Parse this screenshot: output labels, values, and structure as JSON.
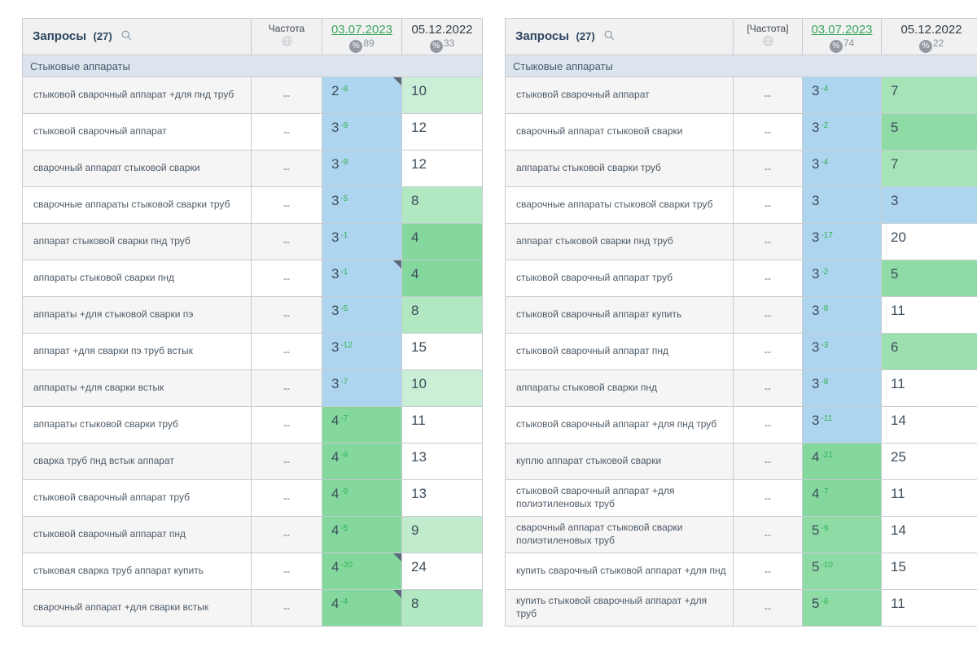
{
  "position_colors": {
    "2": "#aed5ef",
    "3": "#aed5ef",
    "4": "#84d89e",
    "5": "#8edba6",
    "6": "#9ce0b0",
    "7": "#a6e4b8",
    "8": "#b1e7c1",
    "9": "#c1ebcd",
    "10": "#caeed6"
  },
  "colors": {
    "delta_green": "#2fb350",
    "date_link_green": "#3aa55c",
    "group_row_bg": "#dce5ee",
    "header_bg": "#f1f1f1",
    "row_stripe": "#f5f5f5",
    "corner_marker": "#5a6b78",
    "badge_gray": "#939aa2"
  },
  "icons": [
    "search-icon",
    "globe-icon",
    "percent-visibility-icon",
    "note-corner-marker"
  ],
  "tables": [
    {
      "header": {
        "title": "Запросы",
        "count": "(27)",
        "freq": "Частота",
        "date_current": "03.07.2023",
        "date_current_visibility": "89",
        "date_prev": "05.12.2022",
        "date_prev_visibility": "33"
      },
      "group": "Стыковые аппараты",
      "rows": [
        {
          "q": "стыковой сварочный аппарат +для пнд труб",
          "f": "--",
          "p1": "2",
          "d1": "-8",
          "tri": true,
          "p2": "10"
        },
        {
          "q": "стыковой сварочный аппарат",
          "f": "--",
          "p1": "3",
          "d1": "-9",
          "tri": false,
          "p2": "12"
        },
        {
          "q": "сварочный аппарат стыковой сварки",
          "f": "--",
          "p1": "3",
          "d1": "-9",
          "tri": false,
          "p2": "12"
        },
        {
          "q": "сварочные аппараты стыковой сварки труб",
          "f": "--",
          "p1": "3",
          "d1": "-5",
          "tri": false,
          "p2": "8"
        },
        {
          "q": "аппарат стыковой сварки пнд труб",
          "f": "--",
          "p1": "3",
          "d1": "-1",
          "tri": false,
          "p2": "4"
        },
        {
          "q": "аппараты стыковой сварки пнд",
          "f": "--",
          "p1": "3",
          "d1": "-1",
          "tri": true,
          "p2": "4"
        },
        {
          "q": "аппараты +для стыковой сварки пэ",
          "f": "--",
          "p1": "3",
          "d1": "-5",
          "tri": false,
          "p2": "8"
        },
        {
          "q": "аппарат +для сварки пэ труб встык",
          "f": "--",
          "p1": "3",
          "d1": "-12",
          "tri": false,
          "p2": "15"
        },
        {
          "q": "аппараты +для сварки встык",
          "f": "--",
          "p1": "3",
          "d1": "-7",
          "tri": false,
          "p2": "10"
        },
        {
          "q": "аппараты стыковой сварки труб",
          "f": "--",
          "p1": "4",
          "d1": "-7",
          "tri": false,
          "p2": "11"
        },
        {
          "q": "сварка труб пнд встык аппарат",
          "f": "--",
          "p1": "4",
          "d1": "-9",
          "tri": false,
          "p2": "13"
        },
        {
          "q": "стыковой сварочный аппарат труб",
          "f": "--",
          "p1": "4",
          "d1": "-9",
          "tri": false,
          "p2": "13"
        },
        {
          "q": "стыковой сварочный аппарат пнд",
          "f": "--",
          "p1": "4",
          "d1": "-5",
          "tri": false,
          "p2": "9"
        },
        {
          "q": "стыковая сварка труб аппарат купить",
          "f": "--",
          "p1": "4",
          "d1": "-20",
          "tri": true,
          "p2": "24"
        },
        {
          "q": "сварочный аппарат +для сварки встык",
          "f": "--",
          "p1": "4",
          "d1": "-4",
          "tri": true,
          "p2": "8"
        }
      ]
    },
    {
      "header": {
        "title": "Запросы",
        "count": "(27)",
        "freq": "[Частота]",
        "date_current": "03.07.2023",
        "date_current_visibility": "74",
        "date_prev": "05.12.2022",
        "date_prev_visibility": "22"
      },
      "group": "Стыковые аппараты",
      "rows": [
        {
          "q": "стыковой сварочный аппарат",
          "f": "--",
          "p1": "3",
          "d1": "-4",
          "tri": false,
          "p2": "7"
        },
        {
          "q": "сварочный аппарат стыковой сварки",
          "f": "--",
          "p1": "3",
          "d1": "-2",
          "tri": false,
          "p2": "5"
        },
        {
          "q": "аппараты стыковой сварки труб",
          "f": "--",
          "p1": "3",
          "d1": "-4",
          "tri": false,
          "p2": "7"
        },
        {
          "q": "сварочные аппараты стыковой сварки труб",
          "f": "--",
          "p1": "3",
          "d1": "",
          "tri": false,
          "p2": "3"
        },
        {
          "q": "аппарат стыковой сварки пнд труб",
          "f": "--",
          "p1": "3",
          "d1": "-17",
          "tri": false,
          "p2": "20"
        },
        {
          "q": "стыковой сварочный аппарат труб",
          "f": "--",
          "p1": "3",
          "d1": "-2",
          "tri": false,
          "p2": "5"
        },
        {
          "q": "стыковой сварочный аппарат купить",
          "f": "--",
          "p1": "3",
          "d1": "-8",
          "tri": false,
          "p2": "11"
        },
        {
          "q": "стыковой сварочный аппарат пнд",
          "f": "--",
          "p1": "3",
          "d1": "-3",
          "tri": false,
          "p2": "6"
        },
        {
          "q": "аппараты стыковой сварки пнд",
          "f": "--",
          "p1": "3",
          "d1": "-8",
          "tri": false,
          "p2": "11"
        },
        {
          "q": "стыковой сварочный аппарат +для пнд труб",
          "f": "--",
          "p1": "3",
          "d1": "-11",
          "tri": false,
          "p2": "14"
        },
        {
          "q": "куплю аппарат стыковой сварки",
          "f": "--",
          "p1": "4",
          "d1": "-21",
          "tri": false,
          "p2": "25"
        },
        {
          "q": "стыковой сварочный аппарат +для полиэтиленовых труб",
          "f": "--",
          "p1": "4",
          "d1": "-7",
          "tri": false,
          "p2": "11"
        },
        {
          "q": "сварочный аппарат стыковой сварки полиэтиленовых труб",
          "f": "--",
          "p1": "5",
          "d1": "-9",
          "tri": false,
          "p2": "14"
        },
        {
          "q": "купить сварочный стыковой аппарат +для пнд",
          "f": "--",
          "p1": "5",
          "d1": "-10",
          "tri": false,
          "p2": "15"
        },
        {
          "q": "купить стыковой сварочный аппарат +для труб",
          "f": "--",
          "p1": "5",
          "d1": "-6",
          "tri": false,
          "p2": "11"
        }
      ]
    }
  ]
}
